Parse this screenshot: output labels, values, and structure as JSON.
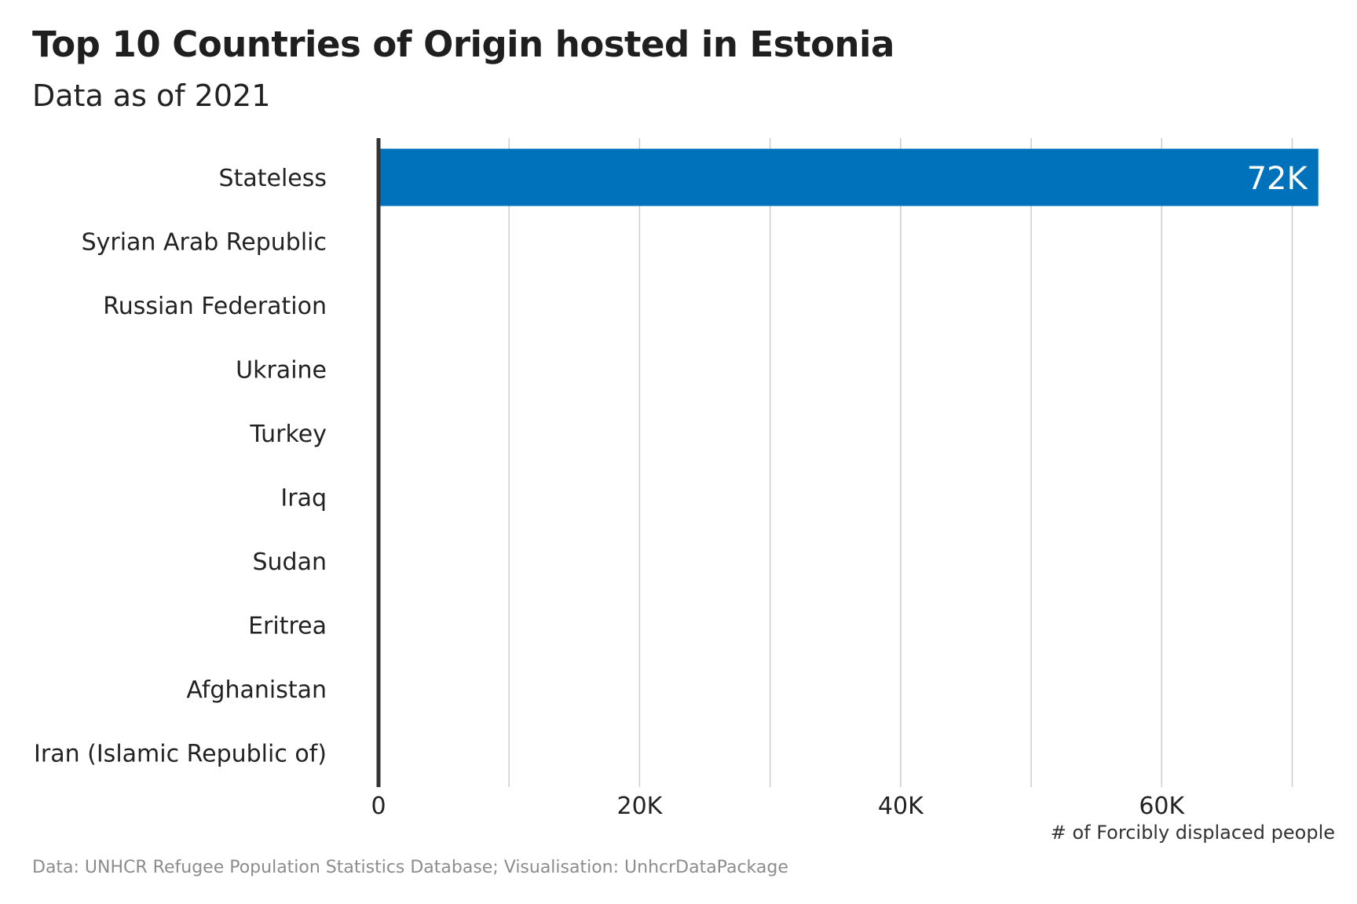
{
  "header": {
    "title": "Top 10 Countries of Origin hosted in Estonia",
    "subtitle": "Data as of 2021"
  },
  "footer": {
    "caption": "Data: UNHCR Refugee Population Statistics Database; Visualisation: UnhcrDataPackage"
  },
  "colors": {
    "bar": "#0072BC",
    "axis_line": "#333333",
    "grid": "#cccccc",
    "bar_label": "#ffffff"
  },
  "chart_data": {
    "type": "bar",
    "orientation": "horizontal",
    "title": "Top 10 Countries of Origin hosted in Estonia",
    "subtitle": "Data as of 2021",
    "categories": [
      "Stateless",
      "Syrian Arab Republic",
      "Russian Federation",
      "Ukraine",
      "Turkey",
      "Iraq",
      "Sudan",
      "Eritrea",
      "Afghanistan",
      "Iran (Islamic Republic of)"
    ],
    "values": [
      72000,
      0,
      0,
      0,
      0,
      0,
      0,
      0,
      0,
      0
    ],
    "data_labels": [
      "72K",
      "",
      "",
      "",
      "",
      "",
      "",
      "",
      "",
      ""
    ],
    "xlabel": "# of Forcibly displaced people",
    "ylabel": "",
    "xlim": [
      0,
      73000
    ],
    "x_ticks": [
      0,
      20000,
      40000,
      60000
    ],
    "x_tick_labels": [
      "0",
      "20K",
      "40K",
      "60K"
    ],
    "x_gridlines": [
      0,
      10000,
      20000,
      30000,
      40000,
      50000,
      60000,
      70000
    ],
    "grid": "vertical",
    "legend": "none"
  }
}
